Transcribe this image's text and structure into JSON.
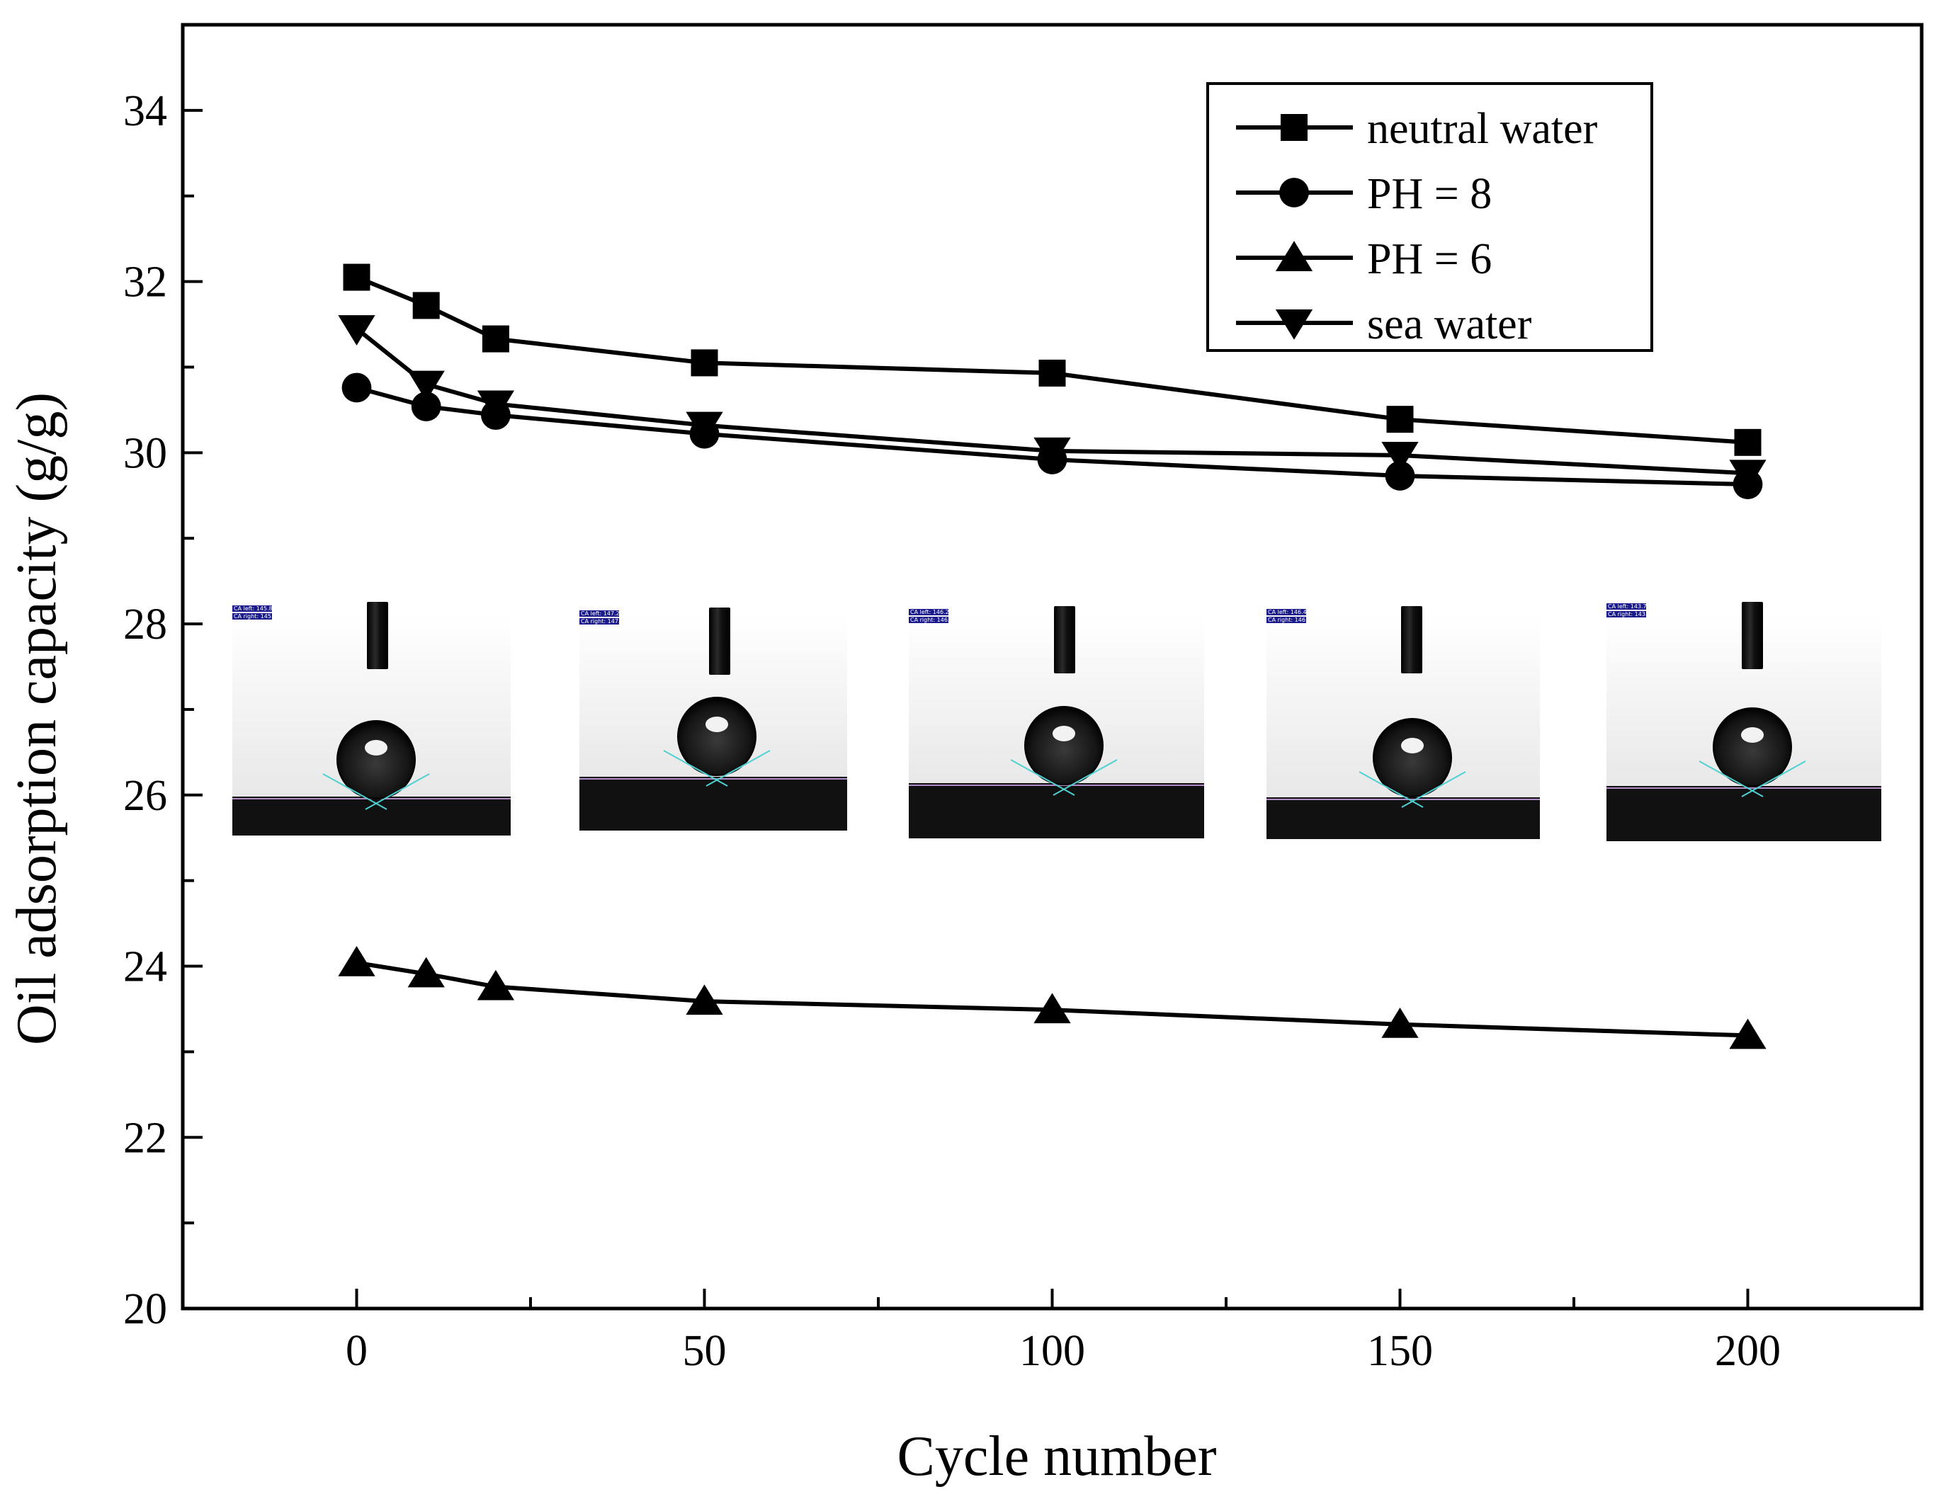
{
  "chart_data": {
    "type": "line",
    "title": "",
    "xlabel": "Cycle number",
    "ylabel": "Oil adsorption capacity (g/g)",
    "xlim": [
      -25,
      225
    ],
    "ylim": [
      20,
      35
    ],
    "xticks": [
      0,
      50,
      100,
      150,
      200
    ],
    "xtick_labels": [
      "0",
      "50",
      "100",
      "150",
      "200"
    ],
    "yticks": [
      20,
      22,
      24,
      26,
      28,
      30,
      32,
      34
    ],
    "ytick_labels": [
      "20",
      "22",
      "24",
      "26",
      "28",
      "30",
      "32",
      "34"
    ],
    "x": [
      0,
      10,
      20,
      50,
      100,
      150,
      200
    ],
    "legend_position": "top-right",
    "series": [
      {
        "name": "neutral water",
        "marker": "square",
        "values": [
          32.05,
          31.72,
          31.33,
          31.05,
          30.93,
          30.39,
          30.12
        ]
      },
      {
        "name": "PH = 8",
        "marker": "circle",
        "values": [
          30.76,
          30.54,
          30.44,
          30.22,
          29.92,
          29.73,
          29.63
        ]
      },
      {
        "name": "PH = 6",
        "marker": "triangle-up",
        "values": [
          24.04,
          23.91,
          23.76,
          23.59,
          23.49,
          23.32,
          23.19
        ]
      },
      {
        "name": "sea water",
        "marker": "triangle-down",
        "values": [
          31.45,
          30.8,
          30.57,
          30.32,
          30.02,
          29.97,
          29.76
        ]
      }
    ],
    "insets": [
      {
        "label": "contact-angle-0",
        "ca_left": "CA left: 145.8°",
        "ca_right": "CA right: 145.6°"
      },
      {
        "label": "contact-angle-50",
        "ca_left": "CA left: 147.2°",
        "ca_right": "CA right: 147.5°"
      },
      {
        "label": "contact-angle-100",
        "ca_left": "CA left: 146.2°",
        "ca_right": "CA right: 146.0°"
      },
      {
        "label": "contact-angle-150",
        "ca_left": "CA left: 146.4°",
        "ca_right": "CA right: 146.1°"
      },
      {
        "label": "contact-angle-200",
        "ca_left": "CA left: 143.7°",
        "ca_right": "CA right: 143.1°"
      }
    ]
  }
}
